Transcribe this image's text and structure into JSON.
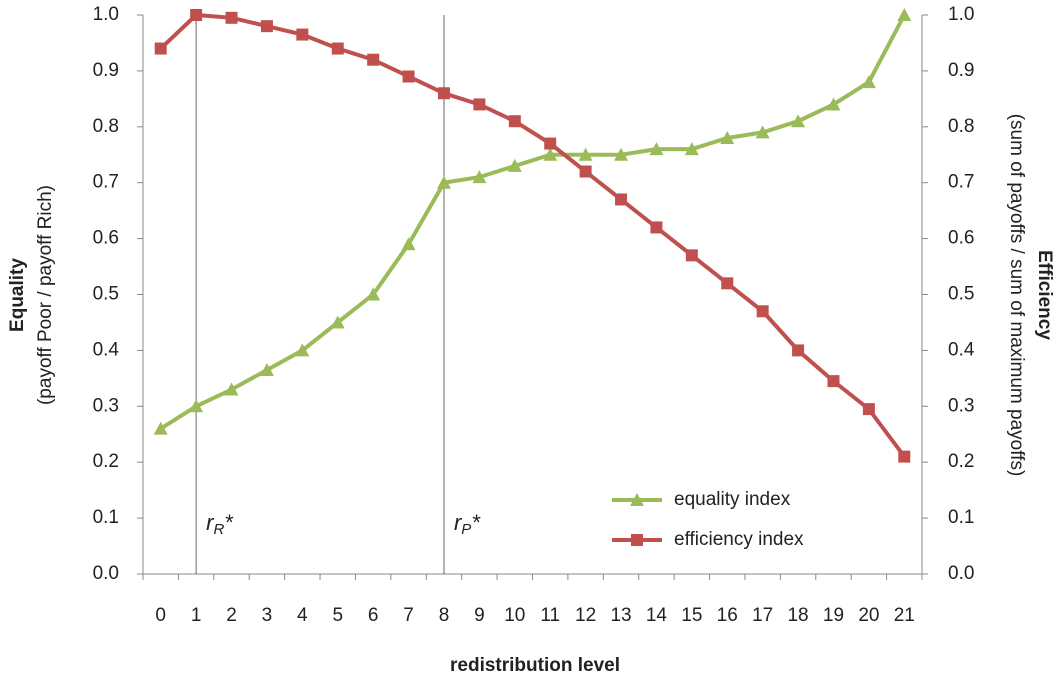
{
  "chart_data": {
    "type": "line",
    "x_label": "redistribution level",
    "y_label": "Equality",
    "y_sublabel": "(payoff Poor / payoff Rich)",
    "y2_label": "Efficiency",
    "y2_sublabel": "(sum of payoffs / sum of maximum payoffs)",
    "categories": [
      "0",
      "1",
      "2",
      "3",
      "4",
      "5",
      "6",
      "7",
      "8",
      "9",
      "10",
      "11",
      "12",
      "13",
      "14",
      "15",
      "16",
      "17",
      "18",
      "19",
      "20",
      "21"
    ],
    "series": [
      {
        "name": "equality index",
        "color": "#9bbb59",
        "marker": "triangle",
        "values": [
          0.26,
          0.3,
          0.33,
          0.365,
          0.4,
          0.45,
          0.5,
          0.59,
          0.7,
          0.71,
          0.73,
          0.75,
          0.75,
          0.75,
          0.76,
          0.76,
          0.78,
          0.79,
          0.81,
          0.84,
          0.88,
          1.0
        ]
      },
      {
        "name": "efficiency index",
        "color": "#c0504d",
        "marker": "square",
        "axis": "y2",
        "values": [
          0.94,
          1.0,
          0.995,
          0.98,
          0.965,
          0.94,
          0.92,
          0.89,
          0.86,
          0.84,
          0.81,
          0.77,
          0.72,
          0.67,
          0.62,
          0.57,
          0.52,
          0.47,
          0.4,
          0.345,
          0.295,
          0.21
        ]
      }
    ],
    "ylim": [
      0,
      1
    ],
    "yticks": [
      {
        "value": 0,
        "label": "0.0"
      },
      0.1,
      0.2,
      0.3,
      0.4,
      0.5,
      0.6,
      0.7,
      0.8,
      0.9,
      {
        "value": 1,
        "label": "1.0"
      }
    ],
    "y2lim": [
      0,
      1
    ],
    "y2ticks": [
      {
        "value": 0,
        "label": "0.0"
      },
      0.1,
      0.2,
      0.3,
      0.4,
      0.5,
      0.6,
      0.7,
      0.8,
      0.9,
      {
        "value": 1,
        "label": "1.0"
      }
    ],
    "annotations": [
      {
        "x": 1,
        "text": "r",
        "sub": "R",
        "suffix": "*"
      },
      {
        "x": 8,
        "text": "r",
        "sub": "P",
        "suffix": "*"
      }
    ],
    "legend": "lower right"
  }
}
